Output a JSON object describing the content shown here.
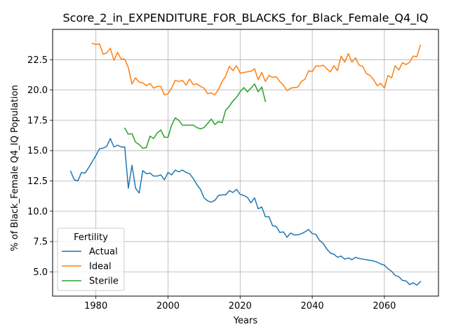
{
  "chart_data": {
    "type": "line",
    "title": "Score_2_in_EXPENDITURE_FOR_BLACKS_for_Black_Female_Q4_IQ",
    "xlabel": "Years",
    "ylabel": "% of Black_Female Q4_IQ Population",
    "xlim": [
      1968,
      2075
    ],
    "ylim": [
      3.0,
      25.0
    ],
    "xticks": [
      1980,
      2000,
      2020,
      2040,
      2060
    ],
    "yticks": [
      5.0,
      7.5,
      10.0,
      12.5,
      15.0,
      17.5,
      20.0,
      22.5
    ],
    "xtick_labels": [
      "1980",
      "2000",
      "2020",
      "2040",
      "2060"
    ],
    "ytick_labels": [
      "5.0",
      "7.5",
      "10.0",
      "12.5",
      "15.0",
      "17.5",
      "20.0",
      "22.5"
    ],
    "grid": true,
    "legend": {
      "title": "Fertility",
      "placement": "lower-left"
    },
    "series": [
      {
        "name": "Actual",
        "color": "#1f77b4",
        "points": [
          [
            1973,
            13.3
          ],
          [
            1974,
            12.6
          ],
          [
            1975,
            12.5
          ],
          [
            1976,
            13.2
          ],
          [
            1977,
            13.15
          ],
          [
            1978,
            13.6
          ],
          [
            1979,
            14.1
          ],
          [
            1980,
            14.6
          ],
          [
            1981,
            15.15
          ],
          [
            1982,
            15.2
          ],
          [
            1983,
            15.35
          ],
          [
            1984,
            16.0
          ],
          [
            1985,
            15.3
          ],
          [
            1986,
            15.45
          ],
          [
            1987,
            15.3
          ],
          [
            1988,
            15.3
          ],
          [
            1989,
            11.9
          ],
          [
            1990,
            13.8
          ],
          [
            1991,
            11.9
          ],
          [
            1992,
            11.5
          ],
          [
            1993,
            13.35
          ],
          [
            1994,
            13.1
          ],
          [
            1995,
            13.15
          ],
          [
            1996,
            12.9
          ],
          [
            1997,
            12.9
          ],
          [
            1998,
            13.0
          ],
          [
            1999,
            12.6
          ],
          [
            2000,
            13.2
          ],
          [
            2001,
            13.0
          ],
          [
            2002,
            13.4
          ],
          [
            2003,
            13.25
          ],
          [
            2004,
            13.4
          ],
          [
            2005,
            13.2
          ],
          [
            2006,
            13.1
          ],
          [
            2007,
            12.7
          ],
          [
            2008,
            12.2
          ],
          [
            2009,
            11.8
          ],
          [
            2010,
            11.1
          ],
          [
            2011,
            10.85
          ],
          [
            2012,
            10.75
          ],
          [
            2013,
            10.9
          ],
          [
            2014,
            11.3
          ],
          [
            2015,
            11.35
          ],
          [
            2016,
            11.35
          ],
          [
            2017,
            11.7
          ],
          [
            2018,
            11.55
          ],
          [
            2019,
            11.8
          ],
          [
            2020,
            11.4
          ],
          [
            2021,
            11.3
          ],
          [
            2022,
            11.15
          ],
          [
            2023,
            10.7
          ],
          [
            2024,
            11.1
          ],
          [
            2025,
            10.2
          ],
          [
            2026,
            10.35
          ],
          [
            2027,
            9.55
          ],
          [
            2028,
            9.55
          ],
          [
            2029,
            8.8
          ],
          [
            2030,
            8.75
          ],
          [
            2031,
            8.25
          ],
          [
            2032,
            8.3
          ],
          [
            2033,
            7.85
          ],
          [
            2034,
            8.2
          ],
          [
            2035,
            8.05
          ],
          [
            2036,
            8.05
          ],
          [
            2037,
            8.15
          ],
          [
            2038,
            8.3
          ],
          [
            2039,
            8.5
          ],
          [
            2040,
            8.15
          ],
          [
            2041,
            8.1
          ],
          [
            2042,
            7.6
          ],
          [
            2043,
            7.35
          ],
          [
            2044,
            6.9
          ],
          [
            2045,
            6.55
          ],
          [
            2046,
            6.45
          ],
          [
            2047,
            6.2
          ],
          [
            2048,
            6.3
          ],
          [
            2049,
            6.05
          ],
          [
            2050,
            6.15
          ],
          [
            2051,
            6.0
          ],
          [
            2052,
            6.2
          ],
          [
            2053,
            6.1
          ],
          [
            2054,
            6.05
          ],
          [
            2055,
            6.0
          ],
          [
            2056,
            5.95
          ],
          [
            2057,
            5.9
          ],
          [
            2058,
            5.8
          ],
          [
            2059,
            5.65
          ],
          [
            2060,
            5.55
          ],
          [
            2061,
            5.25
          ],
          [
            2062,
            5.05
          ],
          [
            2063,
            4.7
          ],
          [
            2064,
            4.6
          ],
          [
            2065,
            4.3
          ],
          [
            2066,
            4.25
          ],
          [
            2067,
            3.95
          ],
          [
            2068,
            4.1
          ],
          [
            2069,
            3.9
          ],
          [
            2070,
            4.2
          ]
        ]
      },
      {
        "name": "Ideal",
        "color": "#ff7f0e",
        "points": [
          [
            1979,
            23.85
          ],
          [
            1980,
            23.75
          ],
          [
            1981,
            23.8
          ],
          [
            1982,
            22.95
          ],
          [
            1983,
            23.05
          ],
          [
            1984,
            23.45
          ],
          [
            1985,
            22.45
          ],
          [
            1986,
            23.1
          ],
          [
            1987,
            22.55
          ],
          [
            1988,
            22.55
          ],
          [
            1989,
            21.85
          ],
          [
            1990,
            20.5
          ],
          [
            1991,
            21.0
          ],
          [
            1992,
            20.65
          ],
          [
            1993,
            20.6
          ],
          [
            1994,
            20.35
          ],
          [
            1995,
            20.55
          ],
          [
            1996,
            20.15
          ],
          [
            1997,
            20.3
          ],
          [
            1998,
            20.3
          ],
          [
            1999,
            19.6
          ],
          [
            2000,
            19.7
          ],
          [
            2001,
            20.15
          ],
          [
            2002,
            20.8
          ],
          [
            2003,
            20.7
          ],
          [
            2004,
            20.8
          ],
          [
            2005,
            20.4
          ],
          [
            2006,
            20.9
          ],
          [
            2007,
            20.45
          ],
          [
            2008,
            20.5
          ],
          [
            2009,
            20.3
          ],
          [
            2010,
            20.15
          ],
          [
            2011,
            19.7
          ],
          [
            2012,
            19.75
          ],
          [
            2013,
            19.6
          ],
          [
            2014,
            20.05
          ],
          [
            2015,
            20.7
          ],
          [
            2016,
            21.15
          ],
          [
            2017,
            21.95
          ],
          [
            2018,
            21.6
          ],
          [
            2019,
            22.0
          ],
          [
            2020,
            21.4
          ],
          [
            2021,
            21.45
          ],
          [
            2022,
            21.5
          ],
          [
            2023,
            21.55
          ],
          [
            2024,
            21.75
          ],
          [
            2025,
            20.85
          ],
          [
            2026,
            21.45
          ],
          [
            2027,
            20.7
          ],
          [
            2028,
            21.2
          ],
          [
            2029,
            21.05
          ],
          [
            2030,
            21.1
          ],
          [
            2031,
            20.7
          ],
          [
            2032,
            20.4
          ],
          [
            2033,
            19.95
          ],
          [
            2034,
            20.15
          ],
          [
            2035,
            20.2
          ],
          [
            2036,
            20.25
          ],
          [
            2037,
            20.7
          ],
          [
            2038,
            20.9
          ],
          [
            2039,
            21.6
          ],
          [
            2040,
            21.5
          ],
          [
            2041,
            22.0
          ],
          [
            2042,
            21.95
          ],
          [
            2043,
            22.05
          ],
          [
            2044,
            21.75
          ],
          [
            2045,
            21.5
          ],
          [
            2046,
            22.0
          ],
          [
            2047,
            21.6
          ],
          [
            2048,
            22.8
          ],
          [
            2049,
            22.3
          ],
          [
            2050,
            23.0
          ],
          [
            2051,
            22.3
          ],
          [
            2052,
            22.65
          ],
          [
            2053,
            22.05
          ],
          [
            2054,
            21.95
          ],
          [
            2055,
            21.35
          ],
          [
            2056,
            21.2
          ],
          [
            2057,
            20.85
          ],
          [
            2058,
            20.35
          ],
          [
            2059,
            20.55
          ],
          [
            2060,
            20.15
          ],
          [
            2061,
            21.2
          ],
          [
            2062,
            21.0
          ],
          [
            2063,
            22.0
          ],
          [
            2064,
            21.65
          ],
          [
            2065,
            22.25
          ],
          [
            2066,
            22.1
          ],
          [
            2067,
            22.3
          ],
          [
            2068,
            22.8
          ],
          [
            2069,
            22.75
          ],
          [
            2070,
            23.7
          ]
        ]
      },
      {
        "name": "Sterile",
        "color": "#2ca02c",
        "points": [
          [
            1988,
            16.85
          ],
          [
            1989,
            16.35
          ],
          [
            1990,
            16.4
          ],
          [
            1991,
            15.7
          ],
          [
            1992,
            15.5
          ],
          [
            1993,
            15.2
          ],
          [
            1994,
            15.25
          ],
          [
            1995,
            16.2
          ],
          [
            1996,
            16.0
          ],
          [
            1997,
            16.45
          ],
          [
            1998,
            16.7
          ],
          [
            1999,
            16.1
          ],
          [
            2000,
            16.1
          ],
          [
            2001,
            17.1
          ],
          [
            2002,
            17.7
          ],
          [
            2003,
            17.5
          ],
          [
            2004,
            17.1
          ],
          [
            2005,
            17.1
          ],
          [
            2006,
            17.1
          ],
          [
            2007,
            17.1
          ],
          [
            2008,
            16.9
          ],
          [
            2009,
            16.8
          ],
          [
            2010,
            16.9
          ],
          [
            2011,
            17.25
          ],
          [
            2012,
            17.6
          ],
          [
            2013,
            17.15
          ],
          [
            2014,
            17.4
          ],
          [
            2015,
            17.3
          ],
          [
            2016,
            18.35
          ],
          [
            2017,
            18.65
          ],
          [
            2018,
            19.1
          ],
          [
            2019,
            19.4
          ],
          [
            2020,
            19.85
          ],
          [
            2021,
            20.2
          ],
          [
            2022,
            19.85
          ],
          [
            2023,
            20.15
          ],
          [
            2024,
            20.5
          ],
          [
            2025,
            19.85
          ],
          [
            2026,
            20.25
          ],
          [
            2027,
            19.05
          ]
        ]
      }
    ]
  }
}
